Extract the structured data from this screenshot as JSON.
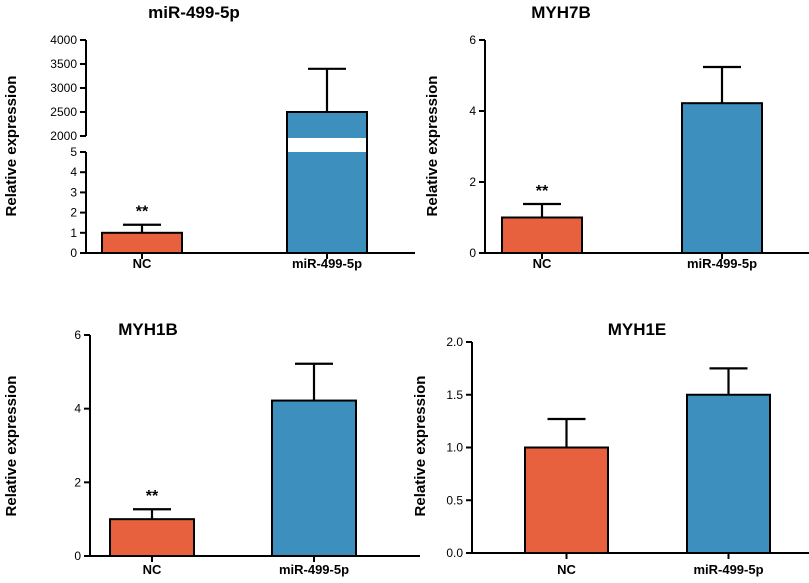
{
  "chart_data": [
    {
      "type": "bar",
      "title": "miR-499-5p",
      "ylabel": "Relative expression",
      "categories": [
        "NC",
        "miR-499-5p"
      ],
      "values": [
        1.0,
        2500
      ],
      "errors": [
        0.4,
        900
      ],
      "significance": [
        "**",
        ""
      ],
      "colors": [
        "#e8613f",
        "#3d8fbd"
      ],
      "axis_break": true,
      "lower_segment": {
        "ylim": [
          0,
          5
        ],
        "ticks": [
          "0",
          "1",
          "2",
          "3",
          "4",
          "5"
        ]
      },
      "upper_segment": {
        "ylim": [
          2000,
          4000
        ],
        "ticks": [
          "2000",
          "2500",
          "3000",
          "3500",
          "4000"
        ]
      }
    },
    {
      "type": "bar",
      "title": "MYH7B",
      "ylabel": "Relative expression",
      "categories": [
        "NC",
        "miR-499-5p"
      ],
      "values": [
        1.0,
        4.22
      ],
      "errors": [
        0.38,
        1.02
      ],
      "significance": [
        "**",
        ""
      ],
      "colors": [
        "#e8613f",
        "#3d8fbd"
      ],
      "ylim": [
        0,
        6
      ],
      "ticks": [
        "0",
        "2",
        "4",
        "6"
      ]
    },
    {
      "type": "bar",
      "title": "MYH1B",
      "ylabel": "Relative expression",
      "categories": [
        "NC",
        "miR-499-5p"
      ],
      "values": [
        1.0,
        4.22
      ],
      "errors": [
        0.27,
        1.0
      ],
      "significance": [
        "**",
        ""
      ],
      "colors": [
        "#e8613f",
        "#3d8fbd"
      ],
      "ylim": [
        0,
        6
      ],
      "ticks": [
        "0",
        "2",
        "4",
        "6"
      ]
    },
    {
      "type": "bar",
      "title": "MYH1E",
      "ylabel": "Relative expression",
      "categories": [
        "NC",
        "miR-499-5p"
      ],
      "values": [
        1.0,
        1.5
      ],
      "errors": [
        0.27,
        0.25
      ],
      "significance": [
        "",
        ""
      ],
      "colors": [
        "#e8613f",
        "#3d8fbd"
      ],
      "ylim": [
        0,
        2
      ],
      "ticks": [
        "0.0",
        "0.5",
        "1.0",
        "1.5",
        "2.0"
      ]
    }
  ]
}
